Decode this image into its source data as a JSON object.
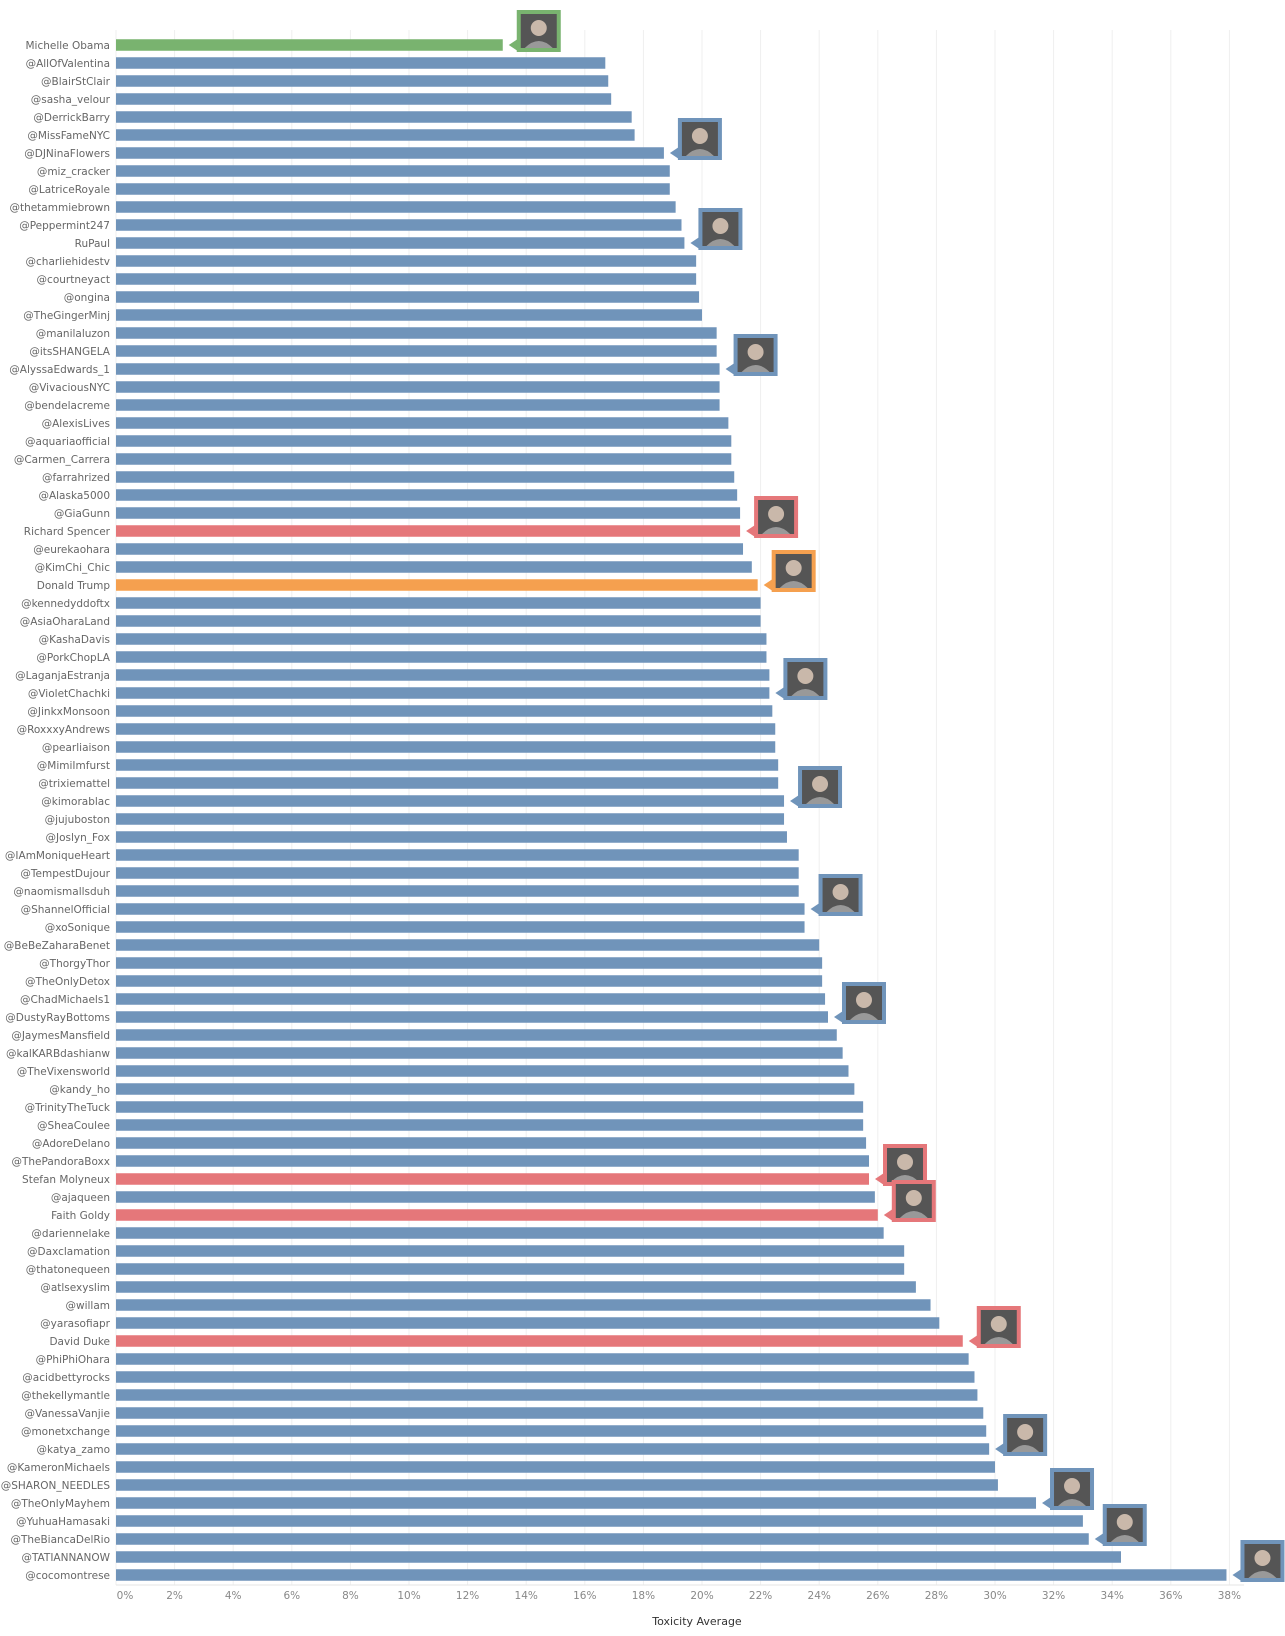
{
  "chart_data": {
    "type": "bar",
    "orientation": "horizontal",
    "xlabel": "Toxicity Average",
    "xlim": [
      0,
      38.5
    ],
    "x_ticks": [
      "0%",
      "2%",
      "4%",
      "6%",
      "8%",
      "10%",
      "12%",
      "14%",
      "16%",
      "18%",
      "20%",
      "22%",
      "24%",
      "26%",
      "28%",
      "30%",
      "32%",
      "34%",
      "36%",
      "38%"
    ],
    "grid": "vertical",
    "colors": {
      "drag": "#7094ba",
      "obama": "#79b36f",
      "white_supremacist": "#e5777a",
      "trump": "#f5a04f"
    },
    "categories": [
      "Michelle Obama",
      "@AllOfValentina",
      "@BlairStClair",
      "@sasha_velour",
      "@DerrickBarry",
      "@MissFameNYC",
      "@DJNinaFlowers",
      "@miz_cracker",
      "@LatriceRoyale",
      "@thetammiebrown",
      "@Peppermint247",
      "RuPaul",
      "@charliehidestv",
      "@courtneyact",
      "@ongina",
      "@TheGingerMinj",
      "@manilaluzon",
      "@itsSHANGELA",
      "@AlyssaEdwards_1",
      "@VivaciousNYC",
      "@bendelacreme",
      "@AlexisLives",
      "@aquariaofficial",
      "@Carmen_Carrera",
      "@farrahrized",
      "@Alaska5000",
      "@GiaGunn",
      "Richard Spencer",
      "@eurekaohara",
      "@KimChi_Chic",
      "Donald Trump",
      "@kennedyddoftx",
      "@AsiaOharaLand",
      "@KashaDavis",
      "@PorkChopLA",
      "@LaganjaEstranja",
      "@VioletChachki",
      "@JinkxMonsoon",
      "@RoxxxyAndrews",
      "@pearliaison",
      "@MimiImfurst",
      "@trixiemattel",
      "@kimorablac",
      "@jujuboston",
      "@Joslyn_Fox",
      "@IAmMoniqueHeart",
      "@TempestDujour",
      "@naomismallsduh",
      "@ShannelOfficial",
      "@xoSonique",
      "@BeBeZaharaBenet",
      "@ThorgyThor",
      "@TheOnlyDetox",
      "@ChadMichaels1",
      "@DustyRayBottoms",
      "@JaymesMansfield",
      "@kalKARBdashianw",
      "@TheVixensworld",
      "@kandy_ho",
      "@TrinityTheTuck",
      "@SheaCoulee",
      "@AdoreDelano",
      "@ThePandoraBoxx",
      "Stefan Molyneux",
      "@ajaqueen",
      "Faith Goldy",
      "@dariennelake",
      "@Daxclamation",
      "@thatonequeen",
      "@atlsexyslim",
      "@willam",
      "@yarasofiapr",
      "David Duke",
      "@PhiPhiOhara",
      "@acidbettyrocks",
      "@thekellymantle",
      "@VanessaVanjie",
      "@monetxchange",
      "@katya_zamo",
      "@KameronMichaels",
      "@SHARON_NEEDLES",
      "@TheOnlyMayhem",
      "@YuhuaHamasaki",
      "@TheBiancaDelRio",
      "@TATIANNANOW",
      "@cocomontrese"
    ],
    "values": [
      13.2,
      16.7,
      16.8,
      16.9,
      17.6,
      17.7,
      18.7,
      18.9,
      18.9,
      19.1,
      19.3,
      19.4,
      19.8,
      19.8,
      19.9,
      20.0,
      20.5,
      20.5,
      20.6,
      20.6,
      20.6,
      20.9,
      21.0,
      21.0,
      21.1,
      21.2,
      21.3,
      21.3,
      21.4,
      21.7,
      21.9,
      22.0,
      22.0,
      22.2,
      22.2,
      22.3,
      22.3,
      22.4,
      22.5,
      22.5,
      22.6,
      22.6,
      22.8,
      22.8,
      22.9,
      23.3,
      23.3,
      23.3,
      23.5,
      23.5,
      24.0,
      24.1,
      24.1,
      24.2,
      24.3,
      24.6,
      24.8,
      25.0,
      25.2,
      25.5,
      25.5,
      25.6,
      25.7,
      25.7,
      25.9,
      26.0,
      26.2,
      26.9,
      26.9,
      27.3,
      27.8,
      28.1,
      28.9,
      29.1,
      29.3,
      29.4,
      29.6,
      29.7,
      29.8,
      30.0,
      30.1,
      31.4,
      33.0,
      33.2,
      34.3,
      37.9
    ],
    "bar_groups": {
      "Michelle Obama": "obama",
      "Richard Spencer": "white_supremacist",
      "Donald Trump": "trump",
      "Stefan Molyneux": "white_supremacist",
      "Faith Goldy": "white_supremacist",
      "David Duke": "white_supremacist"
    },
    "avatar_rows": [
      "Michelle Obama",
      "@DJNinaFlowers",
      "RuPaul",
      "@AlyssaEdwards_1",
      "Richard Spencer",
      "Donald Trump",
      "@VioletChachki",
      "@kimorablac",
      "@ShannelOfficial",
      "@DustyRayBottoms",
      "Stefan Molyneux",
      "Faith Goldy",
      "David Duke",
      "@katya_zamo",
      "@TheOnlyMayhem",
      "@TheBiancaDelRio",
      "@cocomontrese"
    ]
  }
}
